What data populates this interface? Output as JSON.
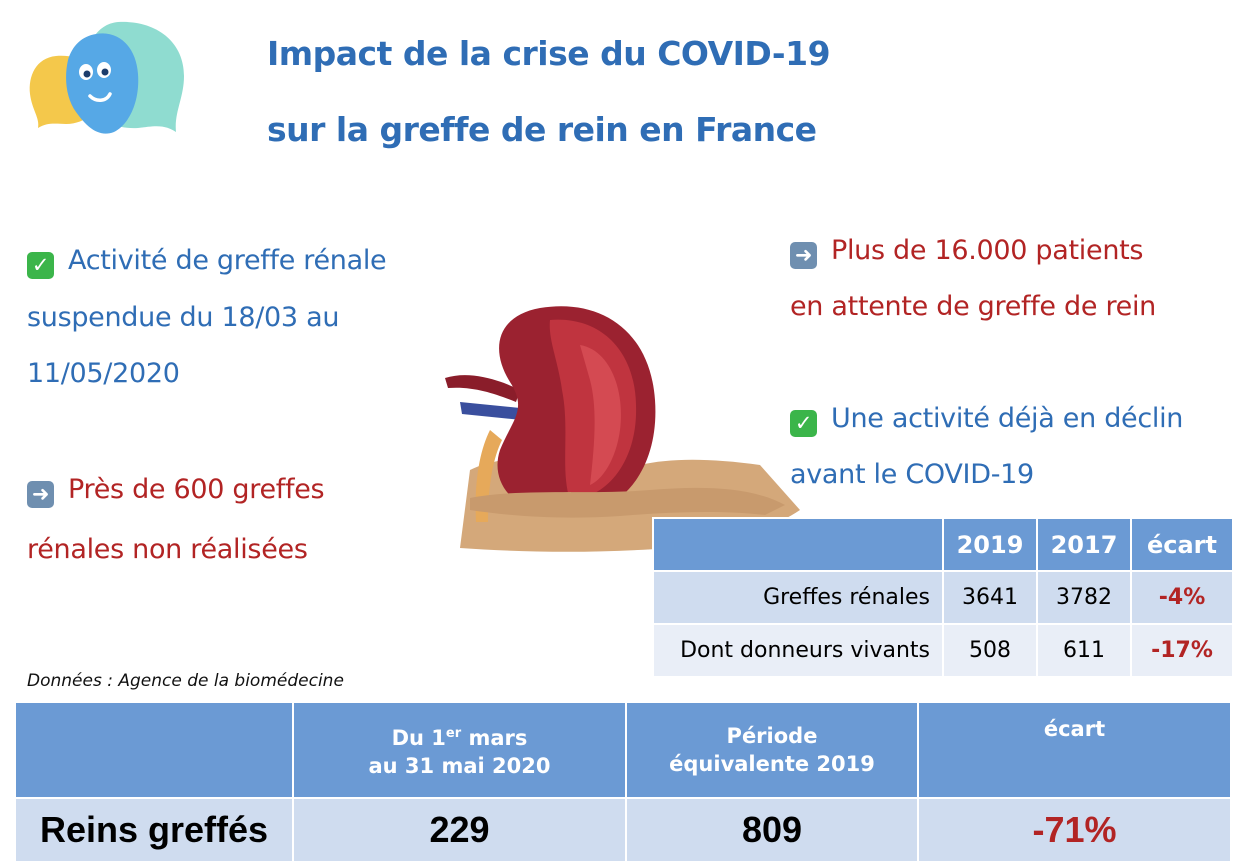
{
  "title": {
    "line1": "Impact de la crise du COVID-19",
    "line2": "sur la greffe de rein en France"
  },
  "left": {
    "block1": {
      "icon": "check-icon",
      "line1": "Activité de greffe rénale",
      "line2": "suspendue du 18/03 au",
      "line3": "11/05/2020"
    },
    "block2": {
      "icon": "arrow-right-icon",
      "line1": "Près de 600 greffes",
      "line2": "rénales non réalisées"
    }
  },
  "right": {
    "block1": {
      "icon": "arrow-right-icon",
      "line1": "Plus de 16.000 patients",
      "line2": "en attente de greffe de rein"
    },
    "block2": {
      "icon": "check-icon",
      "line1": "Une activité déjà en déclin",
      "line2": "avant le COVID-19"
    }
  },
  "table1": {
    "headers": [
      "",
      "2019",
      "2017",
      "écart"
    ],
    "rows": [
      [
        "Greffes rénales",
        "3641",
        "3782",
        "-4%"
      ],
      [
        "Dont donneurs vivants",
        "508",
        "611",
        "-17%"
      ]
    ]
  },
  "source": "Données : Agence de la biomédecine",
  "table2": {
    "col1": {
      "pre": "Du 1",
      "sup": "er",
      "post": " mars",
      "line2": "au 31 mai 2020"
    },
    "col2": {
      "line1": "Période",
      "line2": "équivalente 2019"
    },
    "col3": "écart",
    "row": [
      "Reins greffés",
      "229",
      "809",
      "-71%"
    ]
  },
  "colors": {
    "title_blue": "#2f6db5",
    "red": "#b22424",
    "table_header": "#6b9ad4",
    "table_row": "#cfdcef"
  }
}
